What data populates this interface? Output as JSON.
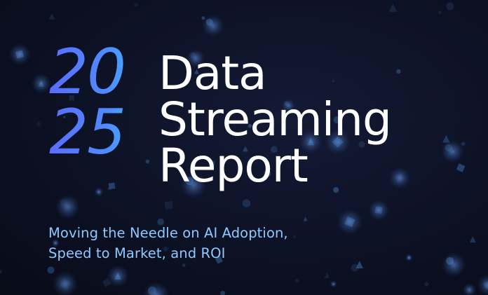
{
  "cover": {
    "year_top": "20",
    "year_bottom": "25",
    "title_lines": [
      "Data",
      "Streaming",
      "Report"
    ],
    "subtitle_lines": [
      "Moving the Needle on AI Adoption,",
      "Speed to Market, and ROI"
    ]
  },
  "colors": {
    "background": "#0c1124",
    "year_gradient_start": "#5b6cff",
    "year_gradient_end": "#3cc2ff",
    "title": "#ffffff",
    "subtitle": "#8ec9ff",
    "particles": "#3f6fa8"
  }
}
